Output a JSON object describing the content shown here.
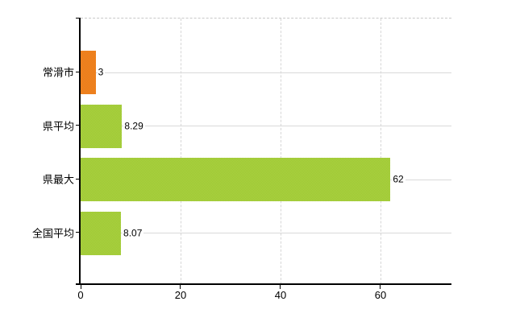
{
  "chart_data": {
    "type": "bar",
    "orientation": "horizontal",
    "title": "",
    "categories": [
      "常滑市",
      "県平均",
      "県最大",
      "全国平均"
    ],
    "values": [
      3,
      8.29,
      62,
      8.07
    ],
    "value_labels": [
      "3",
      "8.29",
      "62",
      "8.07"
    ],
    "bar_colors": [
      "#e8791c",
      "#9dc730",
      "#9dc730",
      "#9dc730"
    ],
    "highlight_color": "#e8791c",
    "default_color": "#9dc730",
    "x_ticks": [
      0,
      20,
      40,
      60
    ],
    "x_tick_labels": [
      "0",
      "20",
      "40",
      "60"
    ],
    "xlim": [
      0,
      74.2
    ],
    "ylabel": "",
    "xlabel": "",
    "legend": false,
    "grid": {
      "vertical": "dashed light gray at each x tick",
      "horizontal": "solid light gray at each category center",
      "top_border": "dashed light gray"
    },
    "background_color": "#ffffff",
    "axis_color": "#000000"
  }
}
